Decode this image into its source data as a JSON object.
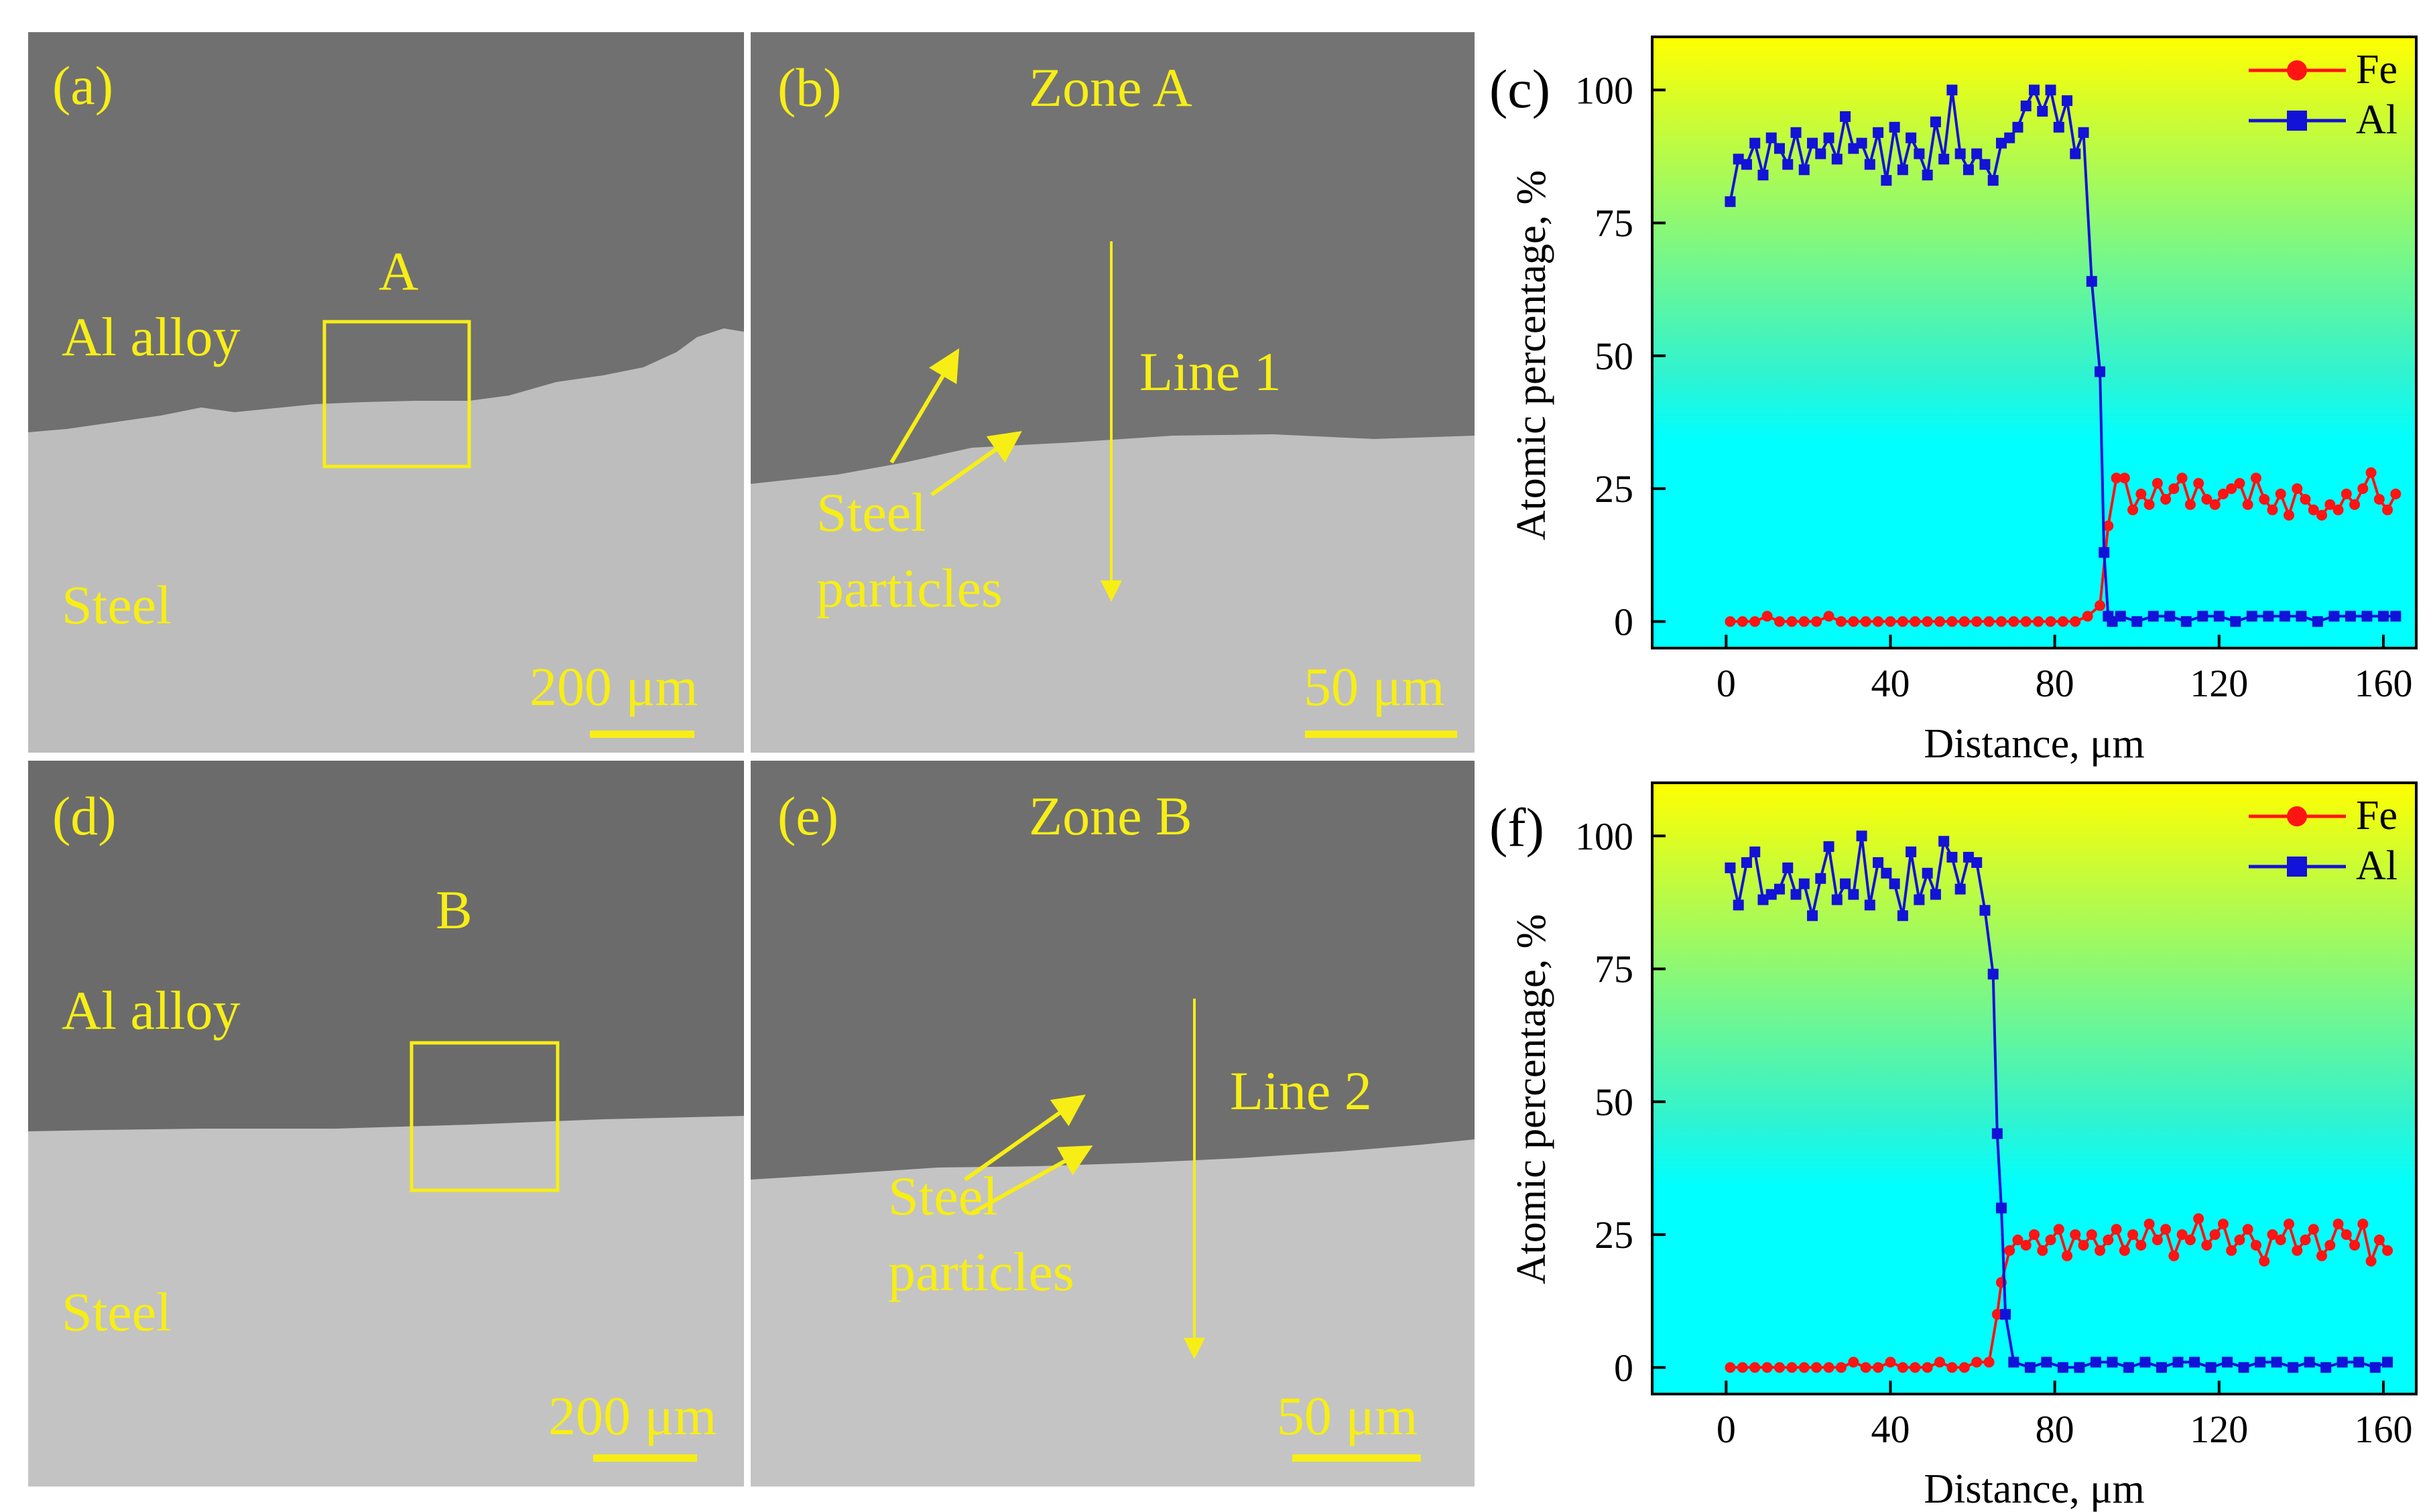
{
  "colors": {
    "annotation": "#f7ee16",
    "al_region": "#707070",
    "steel_region": "#bdbdbd",
    "fe_series": "#ff1414",
    "al_series": "#1212d8",
    "gradient_top": "#ffff00",
    "gradient_bottom": "#00ffff"
  },
  "panels": {
    "a": {
      "label": "(a)",
      "top_text": "Al alloy",
      "box_label": "A",
      "bottom_text": "Steel",
      "scale": "200 μm"
    },
    "b": {
      "label": "(b)",
      "title": "Zone A",
      "line_label": "Line 1",
      "particles_l1": "Steel",
      "particles_l2": "particles",
      "scale": "50 μm"
    },
    "d": {
      "label": "(d)",
      "top_text": "Al alloy",
      "box_label": "B",
      "bottom_text": "Steel",
      "scale": "200 μm"
    },
    "e": {
      "label": "(e)",
      "title": "Zone B",
      "line_label": "Line 2",
      "particles_l1": "Steel",
      "particles_l2": "particles",
      "scale": "50 μm"
    }
  },
  "chart_data": [
    {
      "panel_label": "(c)",
      "type": "line",
      "xlabel": "Distance, μm",
      "ylabel": "Atomic percentage, %",
      "xlim": [
        -18,
        168
      ],
      "ylim": [
        -5,
        110
      ],
      "xticks": [
        0,
        40,
        80,
        120,
        160
      ],
      "yticks": [
        0,
        25,
        50,
        75,
        100
      ],
      "legend_position": "top-right",
      "series": [
        {
          "name": "Fe",
          "marker": "circle",
          "x": [
            1,
            4,
            7,
            10,
            13,
            16,
            19,
            22,
            25,
            28,
            31,
            34,
            37,
            40,
            43,
            46,
            49,
            52,
            55,
            58,
            61,
            64,
            67,
            70,
            73,
            76,
            79,
            82,
            85,
            88,
            91,
            93,
            95,
            97,
            99,
            101,
            103,
            105,
            107,
            109,
            111,
            113,
            115,
            117,
            119,
            121,
            123,
            125,
            127,
            129,
            131,
            133,
            135,
            137,
            139,
            141,
            143,
            145,
            147,
            149,
            151,
            153,
            155,
            157,
            159,
            161,
            163
          ],
          "y": [
            0,
            0,
            0,
            1,
            0,
            0,
            0,
            0,
            1,
            0,
            0,
            0,
            0,
            0,
            0,
            0,
            0,
            0,
            0,
            0,
            0,
            0,
            0,
            0,
            0,
            0,
            0,
            0,
            0,
            1,
            3,
            18,
            27,
            27,
            21,
            24,
            22,
            26,
            23,
            25,
            27,
            22,
            26,
            23,
            22,
            24,
            25,
            26,
            22,
            27,
            23,
            21,
            24,
            20,
            25,
            23,
            21,
            20,
            22,
            21,
            24,
            22,
            25,
            28,
            23,
            21,
            24
          ]
        },
        {
          "name": "Al",
          "marker": "square",
          "x": [
            1,
            3,
            5,
            7,
            9,
            11,
            13,
            15,
            17,
            19,
            21,
            23,
            25,
            27,
            29,
            31,
            33,
            35,
            37,
            39,
            41,
            43,
            45,
            47,
            49,
            51,
            53,
            55,
            57,
            59,
            61,
            63,
            65,
            67,
            69,
            71,
            73,
            75,
            77,
            79,
            81,
            83,
            85,
            87,
            89,
            91,
            92,
            93,
            94,
            96,
            100,
            104,
            108,
            112,
            116,
            120,
            124,
            128,
            132,
            136,
            140,
            144,
            148,
            152,
            156,
            160,
            163
          ],
          "y": [
            79,
            87,
            86,
            90,
            84,
            91,
            89,
            86,
            92,
            85,
            90,
            88,
            91,
            87,
            95,
            89,
            90,
            86,
            92,
            83,
            93,
            85,
            91,
            88,
            84,
            94,
            87,
            100,
            88,
            85,
            88,
            86,
            83,
            90,
            91,
            93,
            97,
            100,
            96,
            100,
            93,
            98,
            88,
            92,
            64,
            47,
            13,
            1,
            0,
            1,
            0,
            1,
            1,
            0,
            1,
            1,
            0,
            1,
            1,
            1,
            1,
            0,
            1,
            1,
            1,
            1,
            1
          ]
        }
      ]
    },
    {
      "panel_label": "(f)",
      "type": "line",
      "xlabel": "Distance, μm",
      "ylabel": "Atomic percentage, %",
      "xlim": [
        -18,
        168
      ],
      "ylim": [
        -5,
        110
      ],
      "xticks": [
        0,
        40,
        80,
        120,
        160
      ],
      "yticks": [
        0,
        25,
        50,
        75,
        100
      ],
      "legend_position": "top-right",
      "series": [
        {
          "name": "Fe",
          "marker": "circle",
          "x": [
            1,
            4,
            7,
            10,
            13,
            16,
            19,
            22,
            25,
            28,
            31,
            34,
            37,
            40,
            43,
            46,
            49,
            52,
            55,
            58,
            61,
            64,
            66,
            67,
            69,
            71,
            73,
            75,
            77,
            79,
            81,
            83,
            85,
            87,
            89,
            91,
            93,
            95,
            97,
            99,
            101,
            103,
            105,
            107,
            109,
            111,
            113,
            115,
            117,
            119,
            121,
            123,
            125,
            127,
            129,
            131,
            133,
            135,
            137,
            139,
            141,
            143,
            145,
            147,
            149,
            151,
            153,
            155,
            157,
            159,
            161
          ],
          "y": [
            0,
            0,
            0,
            0,
            0,
            0,
            0,
            0,
            0,
            0,
            1,
            0,
            0,
            1,
            0,
            0,
            0,
            1,
            0,
            0,
            1,
            1,
            10,
            16,
            22,
            24,
            23,
            25,
            22,
            24,
            26,
            21,
            25,
            23,
            25,
            22,
            24,
            26,
            22,
            25,
            23,
            27,
            24,
            26,
            21,
            25,
            24,
            28,
            23,
            25,
            27,
            22,
            24,
            26,
            23,
            20,
            25,
            24,
            27,
            22,
            24,
            26,
            21,
            23,
            27,
            25,
            23,
            27,
            20,
            24,
            22
          ]
        },
        {
          "name": "Al",
          "marker": "square",
          "x": [
            1,
            3,
            5,
            7,
            9,
            11,
            13,
            15,
            17,
            19,
            21,
            23,
            25,
            27,
            29,
            31,
            33,
            35,
            37,
            39,
            41,
            43,
            45,
            47,
            49,
            51,
            53,
            55,
            57,
            59,
            61,
            63,
            65,
            66,
            67,
            68,
            70,
            74,
            78,
            82,
            86,
            90,
            94,
            98,
            102,
            106,
            110,
            114,
            118,
            122,
            126,
            130,
            134,
            138,
            142,
            146,
            150,
            154,
            158,
            161
          ],
          "y": [
            94,
            87,
            95,
            97,
            88,
            89,
            90,
            94,
            89,
            91,
            85,
            92,
            98,
            88,
            91,
            89,
            100,
            87,
            95,
            93,
            91,
            85,
            97,
            88,
            93,
            89,
            99,
            96,
            90,
            96,
            95,
            86,
            74,
            44,
            30,
            10,
            1,
            0,
            1,
            0,
            0,
            1,
            1,
            0,
            1,
            0,
            1,
            1,
            0,
            1,
            0,
            1,
            1,
            0,
            1,
            0,
            1,
            1,
            0,
            1
          ]
        }
      ]
    }
  ]
}
